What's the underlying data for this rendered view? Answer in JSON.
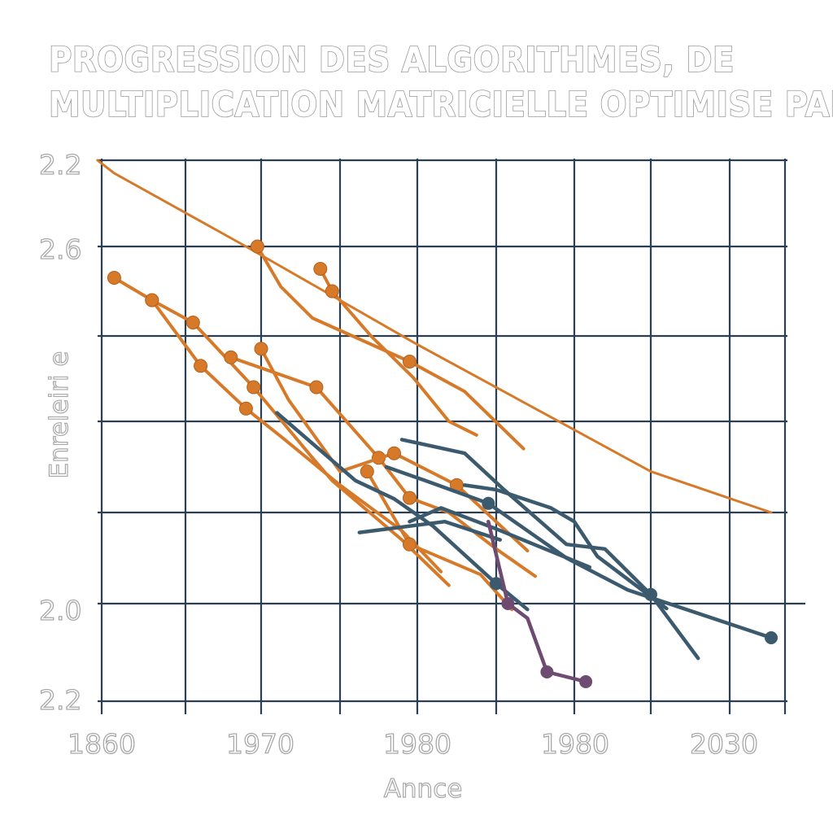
{
  "chart_data": {
    "type": "line",
    "title_lines": [
      "PROGRESSION DES ALGORITHMES, DE",
      "MULTIPLICATION MATRICIELLE OPTIMISE PAR IA"
    ],
    "xlabel": "Annce",
    "ylabel": "Enreleiri e",
    "x_tick_labels": [
      "1860",
      "1970",
      "1980",
      "1980",
      "2030"
    ],
    "y_tick_labels": [
      "2.2",
      "2.6",
      "",
      "",
      "",
      "2.0",
      "2.2"
    ],
    "x_range": [
      0,
      8.75
    ],
    "y_range": [
      0,
      6
    ],
    "grid": true,
    "colors": {
      "orange": "#d67a2a",
      "orange_marker_stroke": "#b45f1c",
      "teal": "#3c5a6e",
      "purple": "#6e4c72",
      "grid": "#2b3f52"
    },
    "series": [
      {
        "color": "orange",
        "width": 3,
        "markers": [],
        "points": [
          [
            -0.05,
            0
          ],
          [
            0.15,
            0.15
          ],
          [
            1.8,
            1.0
          ],
          [
            2.8,
            1.5
          ],
          [
            4.0,
            2.1
          ],
          [
            5.5,
            2.85
          ],
          [
            7.0,
            3.55
          ],
          [
            8.75,
            4.0
          ]
        ]
      },
      {
        "color": "orange",
        "width": 4,
        "markers": [
          0,
          1,
          2,
          3
        ],
        "points": [
          [
            0.15,
            1.35
          ],
          [
            0.6,
            1.6
          ],
          [
            1.2,
            2.35
          ],
          [
            1.8,
            2.85
          ],
          [
            2.3,
            3.2
          ],
          [
            3.0,
            3.7
          ],
          [
            3.8,
            4.2
          ],
          [
            4.3,
            4.65
          ]
        ]
      },
      {
        "color": "orange",
        "width": 4,
        "markers": [
          0,
          1,
          2
        ],
        "points": [
          [
            0.6,
            1.6
          ],
          [
            1.1,
            1.85
          ],
          [
            1.9,
            2.6
          ],
          [
            2.65,
            3.4
          ],
          [
            2.9,
            3.65
          ],
          [
            3.8,
            4.3
          ],
          [
            4.4,
            4.8
          ]
        ]
      },
      {
        "color": "orange",
        "width": 4,
        "markers": [
          0,
          1,
          2,
          3
        ],
        "points": [
          [
            1.6,
            2.25
          ],
          [
            2.7,
            2.6
          ],
          [
            3.5,
            3.4
          ],
          [
            3.9,
            3.84
          ],
          [
            4.4,
            4.0
          ],
          [
            5.0,
            4.4
          ],
          [
            5.5,
            4.7
          ]
        ]
      },
      {
        "color": "orange",
        "width": 4,
        "markers": [
          0,
          1
        ],
        "points": [
          [
            2.75,
            1.25
          ],
          [
            2.9,
            1.5
          ],
          [
            3.4,
            2.0
          ],
          [
            3.95,
            2.49
          ],
          [
            4.4,
            3.0
          ],
          [
            4.75,
            3.15
          ]
        ]
      },
      {
        "color": "orange",
        "width": 4,
        "markers": [
          0,
          3,
          4
        ],
        "points": [
          [
            2.0,
            2.15
          ],
          [
            2.35,
            2.75
          ],
          [
            3.0,
            3.55
          ],
          [
            3.7,
            3.35
          ],
          [
            4.5,
            3.7
          ],
          [
            5.4,
            4.42
          ]
        ]
      },
      {
        "color": "orange",
        "width": 4,
        "markers": [
          0,
          1
        ],
        "points": [
          [
            3.35,
            3.55
          ],
          [
            3.9,
            4.35
          ],
          [
            4.8,
            4.68
          ],
          [
            5.2,
            5.06
          ]
        ]
      },
      {
        "color": "orange",
        "width": 4,
        "markers": [
          0,
          3
        ],
        "points": [
          [
            1.95,
            1.0
          ],
          [
            2.25,
            1.45
          ],
          [
            2.65,
            1.8
          ],
          [
            3.9,
            2.3
          ],
          [
            4.6,
            2.65
          ],
          [
            5.35,
            3.3
          ]
        ]
      },
      {
        "color": "teal",
        "width": 4.5,
        "markers": [
          4
        ],
        "points": [
          [
            2.2,
            2.9
          ],
          [
            3.2,
            3.65
          ],
          [
            3.7,
            3.85
          ],
          [
            4.2,
            4.15
          ],
          [
            5.0,
            4.78
          ],
          [
            5.4,
            5.06
          ]
        ]
      },
      {
        "color": "teal",
        "width": 4.5,
        "markers": [
          5
        ],
        "points": [
          [
            3.8,
            3.2
          ],
          [
            4.6,
            3.35
          ],
          [
            5.1,
            3.75
          ],
          [
            5.9,
            4.35
          ],
          [
            6.4,
            4.4
          ],
          [
            7.0,
            4.9
          ],
          [
            7.6,
            5.56
          ]
        ]
      },
      {
        "color": "teal",
        "width": 4.5,
        "markers": [
          2,
          5
        ],
        "points": [
          [
            3.6,
            3.5
          ],
          [
            4.1,
            3.65
          ],
          [
            4.9,
            3.9
          ],
          [
            5.9,
            4.5
          ],
          [
            6.7,
            4.85
          ],
          [
            8.75,
            5.35
          ]
        ]
      },
      {
        "color": "teal",
        "width": 4.5,
        "markers": [],
        "points": [
          [
            4.6,
            3.7
          ],
          [
            5.0,
            3.75
          ],
          [
            5.7,
            3.95
          ],
          [
            6.0,
            4.1
          ],
          [
            6.3,
            4.48
          ],
          [
            7.2,
            5.05
          ]
        ]
      },
      {
        "color": "teal",
        "width": 4.5,
        "markers": [],
        "points": [
          [
            3.25,
            4.22
          ],
          [
            4.35,
            4.1
          ],
          [
            5.05,
            4.3
          ]
        ]
      },
      {
        "color": "teal",
        "width": 4.5,
        "markers": [],
        "points": [
          [
            3.9,
            4.1
          ],
          [
            4.3,
            3.95
          ],
          [
            5.0,
            4.18
          ],
          [
            6.2,
            4.6
          ]
        ]
      },
      {
        "color": "purple",
        "width": 4.5,
        "markers": [
          1,
          3,
          4
        ],
        "points": [
          [
            4.9,
            4.1
          ],
          [
            5.15,
            5.0
          ],
          [
            5.4,
            5.15
          ],
          [
            5.65,
            5.7
          ],
          [
            6.15,
            5.8
          ]
        ]
      }
    ]
  }
}
